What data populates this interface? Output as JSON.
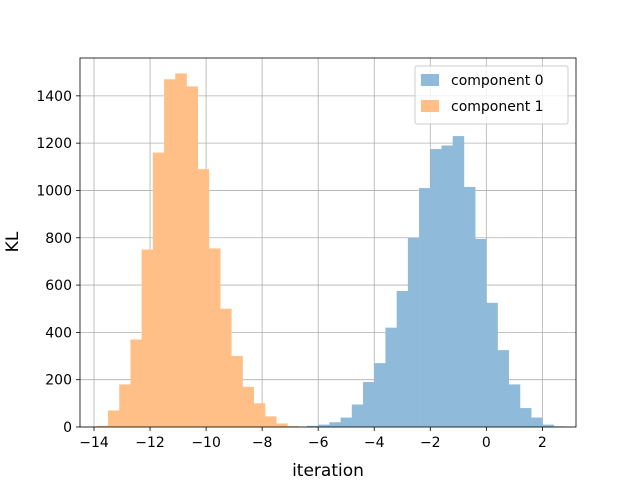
{
  "chart_data": {
    "type": "bar",
    "title": "",
    "xlabel": "iteration",
    "ylabel": "KL",
    "xlim": [
      -14.5,
      3.2
    ],
    "ylim": [
      0,
      1560
    ],
    "xticks": [
      -14,
      -12,
      -10,
      -8,
      -6,
      -4,
      -2,
      0,
      2
    ],
    "xtick_labels": [
      "−14",
      "−12",
      "−10",
      "−8",
      "−6",
      "−4",
      "−2",
      "0",
      "2"
    ],
    "yticks": [
      0,
      200,
      400,
      600,
      800,
      1000,
      1200,
      1400
    ],
    "ytick_labels": [
      "0",
      "200",
      "400",
      "600",
      "800",
      "1000",
      "1200",
      "1400"
    ],
    "grid": true,
    "legend_position": "top-right",
    "series": [
      {
        "name": "component 0",
        "color": "#8fbad9",
        "bin_edges": [
          -6.4,
          -6.0,
          -5.6,
          -5.2,
          -4.8,
          -4.4,
          -4.0,
          -3.6,
          -3.2,
          -2.8,
          -2.4,
          -2.0,
          -1.6,
          -1.2,
          -0.8,
          -0.4,
          0.0,
          0.4,
          0.8,
          1.2,
          1.6,
          2.0,
          2.4,
          2.8
        ],
        "values": [
          5,
          10,
          20,
          40,
          95,
          190,
          270,
          420,
          575,
          800,
          1010,
          1175,
          1190,
          1230,
          1015,
          795,
          525,
          325,
          180,
          80,
          40,
          10,
          3
        ]
      },
      {
        "name": "component 1",
        "color": "#ffbf86",
        "bin_edges": [
          -13.9,
          -13.5,
          -13.1,
          -12.7,
          -12.3,
          -11.9,
          -11.5,
          -11.1,
          -10.7,
          -10.3,
          -9.9,
          -9.5,
          -9.1,
          -8.7,
          -8.3,
          -7.9,
          -7.5,
          -7.1,
          -6.7
        ],
        "values": [
          5,
          70,
          180,
          370,
          750,
          1160,
          1470,
          1495,
          1440,
          1090,
          755,
          500,
          300,
          170,
          100,
          45,
          15,
          4
        ]
      }
    ]
  }
}
